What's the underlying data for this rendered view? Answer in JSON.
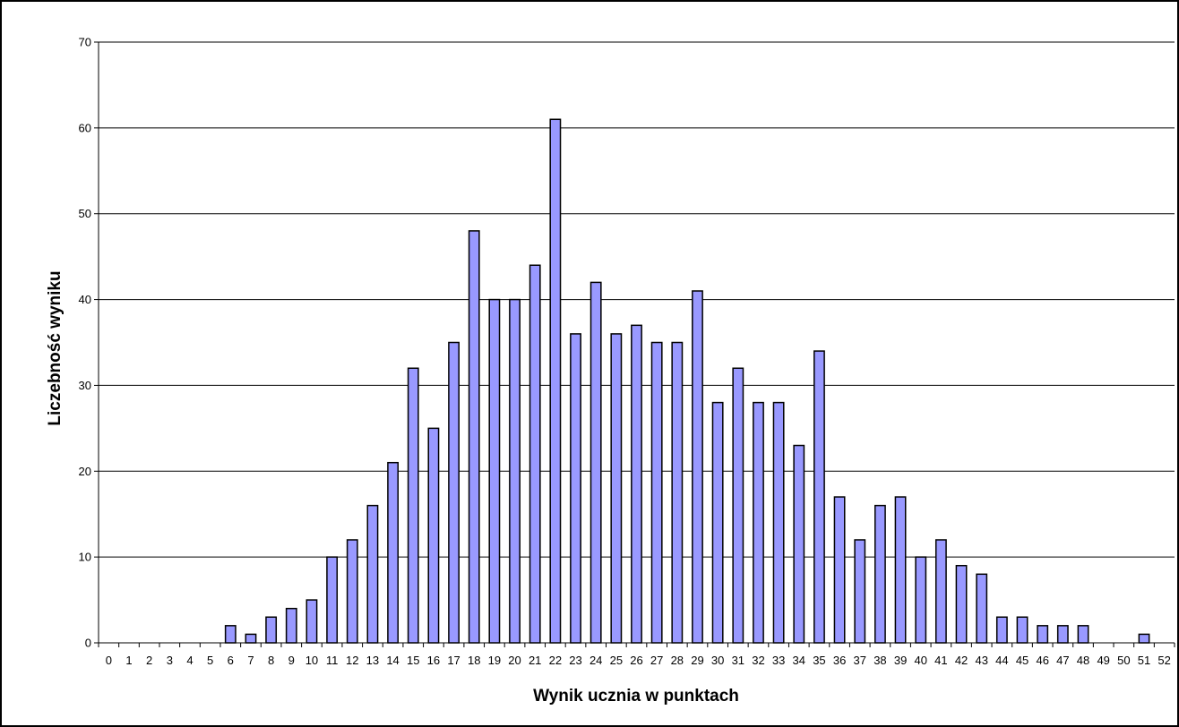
{
  "chart_data": {
    "type": "bar",
    "title": "",
    "xlabel": "Wynik ucznia w punktach",
    "ylabel": "Liczebność wyniku",
    "ylim": [
      0,
      70
    ],
    "yticks": [
      0,
      10,
      20,
      30,
      40,
      50,
      60,
      70
    ],
    "grid": true,
    "legend": "none",
    "colors": {
      "bar_fill": "#9999ff",
      "bar_stroke": "#000000",
      "grid": "#000000",
      "background": "#ffffff"
    },
    "categories": [
      "0",
      "1",
      "2",
      "3",
      "4",
      "5",
      "6",
      "7",
      "8",
      "9",
      "10",
      "11",
      "12",
      "13",
      "14",
      "15",
      "16",
      "17",
      "18",
      "19",
      "20",
      "21",
      "22",
      "23",
      "24",
      "25",
      "26",
      "27",
      "28",
      "29",
      "30",
      "31",
      "32",
      "33",
      "34",
      "35",
      "36",
      "37",
      "38",
      "39",
      "40",
      "41",
      "42",
      "43",
      "44",
      "45",
      "46",
      "47",
      "48",
      "49",
      "50",
      "51",
      "52"
    ],
    "values": [
      0,
      0,
      0,
      0,
      0,
      0,
      2,
      1,
      3,
      4,
      5,
      10,
      12,
      16,
      21,
      32,
      25,
      35,
      48,
      40,
      40,
      44,
      61,
      36,
      42,
      36,
      37,
      35,
      35,
      41,
      28,
      32,
      28,
      28,
      23,
      34,
      17,
      12,
      16,
      17,
      10,
      12,
      9,
      8,
      3,
      3,
      2,
      2,
      2,
      0,
      0,
      1,
      0
    ]
  }
}
